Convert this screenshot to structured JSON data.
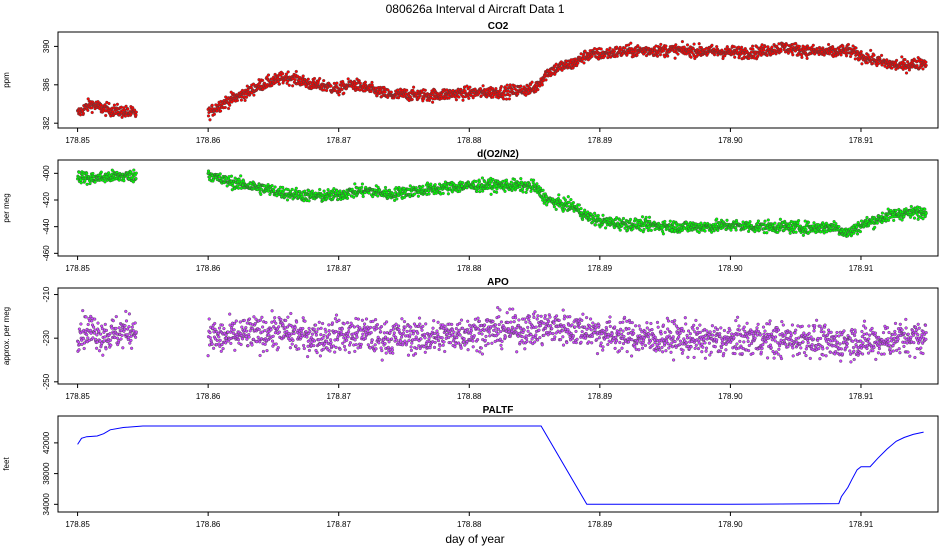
{
  "title": "080626a   Interval d Aircraft Data 1",
  "xlabel": "day of year",
  "x_ticks": [
    "178.85",
    "178.86",
    "178.87",
    "178.88",
    "178.89",
    "178.90",
    "178.91"
  ],
  "chart_data": [
    {
      "type": "scatter",
      "title": "CO2",
      "ylabel": "ppm",
      "color": "#ff0000",
      "xlim": [
        178.8485,
        178.9159
      ],
      "ylim": [
        381.5,
        391.5
      ],
      "y_ticks": [
        382,
        386,
        390
      ],
      "y_tick_labels": [
        "382",
        "386",
        "390"
      ],
      "series": [
        {
          "x": [
            178.85,
            178.851,
            178.852,
            178.8535,
            178.8545,
            178.86,
            178.861,
            178.862,
            178.863,
            178.864,
            178.865,
            178.866,
            178.867,
            178.868,
            178.869,
            178.87,
            178.871,
            178.872,
            178.873,
            178.874,
            178.875,
            178.877,
            178.879,
            178.881,
            178.883,
            178.885,
            178.886,
            178.887,
            178.888,
            178.889,
            178.89,
            178.892,
            178.894,
            178.896,
            178.898,
            178.9,
            178.902,
            178.904,
            178.906,
            178.908,
            178.909,
            178.91,
            178.912,
            178.913,
            178.915
          ],
          "y": [
            383.0,
            384.0,
            383.5,
            383.2,
            383.0,
            383.0,
            384.0,
            384.6,
            385.2,
            386.0,
            386.4,
            386.8,
            386.5,
            386.0,
            385.9,
            385.5,
            386.1,
            385.7,
            385.3,
            384.9,
            385.0,
            384.9,
            385.1,
            385.2,
            385.3,
            385.6,
            387.3,
            387.9,
            388.2,
            389.1,
            389.2,
            389.5,
            389.6,
            389.6,
            389.5,
            389.4,
            389.4,
            389.9,
            389.5,
            389.4,
            389.6,
            389.0,
            388.2,
            388.0,
            388.3
          ]
        }
      ]
    },
    {
      "type": "scatter",
      "title": "d(O2/N2)",
      "ylabel": "per meg",
      "color": "#00ff00",
      "xlim": [
        178.8485,
        178.9159
      ],
      "ylim": [
        -462,
        -390
      ],
      "y_ticks": [
        -460,
        -440,
        -420,
        -400
      ],
      "y_tick_labels": [
        "-460",
        "-440",
        "-420",
        "-400"
      ],
      "series": [
        {
          "x": [
            178.85,
            178.851,
            178.852,
            178.8535,
            178.8545,
            178.86,
            178.861,
            178.862,
            178.863,
            178.864,
            178.865,
            178.866,
            178.867,
            178.868,
            178.869,
            178.87,
            178.871,
            178.872,
            178.873,
            178.874,
            178.875,
            178.877,
            178.879,
            178.881,
            178.883,
            178.885,
            178.886,
            178.887,
            178.888,
            178.889,
            178.89,
            178.892,
            178.894,
            178.896,
            178.898,
            178.9,
            178.902,
            178.904,
            178.906,
            178.908,
            178.909,
            178.91,
            178.912,
            178.913,
            178.915
          ],
          "y": [
            -402,
            -404,
            -403,
            -402,
            -402,
            -400,
            -405,
            -407,
            -409,
            -411,
            -413,
            -415,
            -416,
            -417,
            -417,
            -416,
            -414,
            -413,
            -414,
            -416,
            -414,
            -412,
            -410,
            -409,
            -409,
            -410,
            -420,
            -423,
            -425,
            -432,
            -436,
            -438,
            -439,
            -440,
            -440,
            -439,
            -440,
            -440,
            -441,
            -440,
            -445,
            -439,
            -432,
            -430,
            -429
          ]
        }
      ]
    },
    {
      "type": "scatter",
      "title": "APO",
      "ylabel": "approx. per meg",
      "color": "#cc44ff",
      "xlim": [
        178.8485,
        178.9159
      ],
      "ylim": [
        -251,
        -207
      ],
      "y_ticks": [
        -250,
        -230,
        -210
      ],
      "y_tick_labels": [
        "-250",
        "-230",
        "-210"
      ],
      "series": [
        {
          "x": [
            178.85,
            178.851,
            178.852,
            178.8535,
            178.8545,
            178.86,
            178.861,
            178.862,
            178.863,
            178.864,
            178.865,
            178.866,
            178.867,
            178.868,
            178.869,
            178.87,
            178.871,
            178.872,
            178.873,
            178.874,
            178.875,
            178.877,
            178.879,
            178.881,
            178.883,
            178.885,
            178.886,
            178.887,
            178.888,
            178.889,
            178.89,
            178.892,
            178.894,
            178.896,
            178.898,
            178.9,
            178.902,
            178.904,
            178.906,
            178.908,
            178.909,
            178.91,
            178.912,
            178.913,
            178.915
          ],
          "y": [
            -227,
            -226,
            -229,
            -227,
            -226,
            -229,
            -230,
            -229,
            -228,
            -228,
            -227,
            -227,
            -229,
            -229,
            -230,
            -228,
            -229,
            -228,
            -230,
            -230,
            -229,
            -230,
            -228,
            -227,
            -226,
            -226,
            -225,
            -225,
            -226,
            -226,
            -228,
            -229,
            -230,
            -230,
            -231,
            -231,
            -230,
            -231,
            -230,
            -233,
            -231,
            -232,
            -231,
            -230,
            -230
          ]
        }
      ]
    },
    {
      "type": "line",
      "title": "PALTF",
      "ylabel": "feet",
      "color": "#0000ff",
      "xlim": [
        178.8485,
        178.9159
      ],
      "ylim": [
        33000,
        45500
      ],
      "y_ticks": [
        34000,
        38000,
        42000
      ],
      "y_tick_labels": [
        "34000",
        "38000",
        "42000"
      ],
      "series": [
        {
          "x": [
            178.85,
            178.8503,
            178.8507,
            178.8515,
            178.852,
            178.8525,
            178.8535,
            178.855,
            178.86,
            178.87,
            178.88,
            178.8855,
            178.889,
            178.895,
            178.9,
            178.9083,
            178.9085,
            178.909,
            178.9093,
            178.9097,
            178.91,
            178.9107,
            178.9113,
            178.912,
            178.9127,
            178.9133,
            178.914,
            178.9148
          ],
          "y": [
            41800,
            42600,
            42800,
            42900,
            43200,
            43700,
            44000,
            44200,
            44200,
            44200,
            44200,
            44200,
            34000,
            34000,
            34000,
            34100,
            35000,
            36200,
            37200,
            38500,
            38900,
            38900,
            40000,
            41200,
            42200,
            42700,
            43100,
            43400
          ]
        }
      ]
    }
  ]
}
